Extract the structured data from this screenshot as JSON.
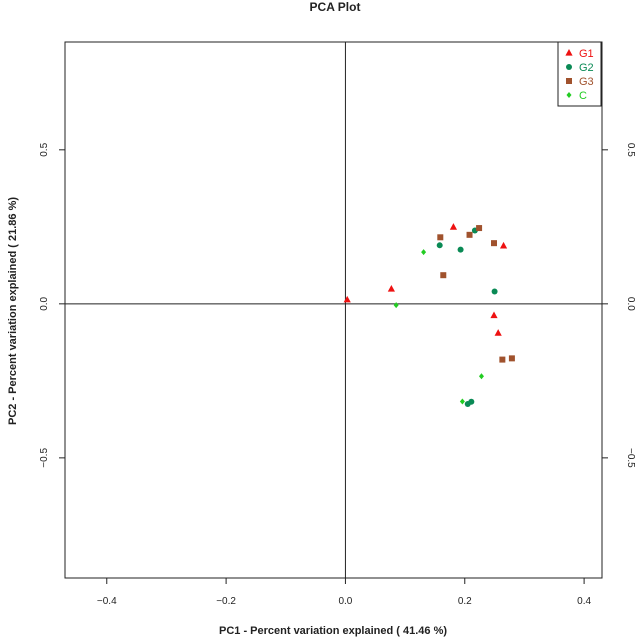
{
  "chart_data": {
    "type": "scatter",
    "title": "PCA Plot",
    "xlabel": "PC1 - Percent variation explained ( 41.46 %)",
    "ylabel": "PC2 - Percent variation explained ( 21.86 %)",
    "xlim": [
      -0.47,
      0.43
    ],
    "ylim": [
      -0.89,
      0.85
    ],
    "xticks": [
      -0.4,
      -0.2,
      0.0,
      0.2,
      0.4
    ],
    "xtick_labels": [
      "−0.4",
      "−0.2",
      "0.0",
      "0.2",
      "0.4"
    ],
    "yticks": [
      -0.5,
      0.0,
      0.5
    ],
    "ytick_labels": [
      "−0.5",
      "0.0",
      "0.5"
    ],
    "reference_lines": {
      "x": 0,
      "y": 0
    },
    "legend_position": "top-right",
    "grid": false,
    "series": [
      {
        "name": "G1",
        "marker": "triangle",
        "color": "#ee1111",
        "points": [
          [
            0.003,
            0.013
          ],
          [
            0.077,
            0.048
          ],
          [
            0.181,
            0.249
          ],
          [
            0.265,
            0.188
          ],
          [
            0.249,
            -0.038
          ],
          [
            0.256,
            -0.095
          ]
        ]
      },
      {
        "name": "G2",
        "marker": "circle",
        "color": "#0a8a55",
        "points": [
          [
            0.158,
            0.19
          ],
          [
            0.193,
            0.176
          ],
          [
            0.217,
            0.238
          ],
          [
            0.25,
            0.04
          ],
          [
            0.205,
            -0.325
          ],
          [
            0.211,
            -0.318
          ]
        ]
      },
      {
        "name": "G3",
        "marker": "square",
        "color": "#a0522d",
        "points": [
          [
            0.159,
            0.216
          ],
          [
            0.208,
            0.224
          ],
          [
            0.224,
            0.246
          ],
          [
            0.249,
            0.197
          ],
          [
            0.164,
            0.093
          ],
          [
            0.263,
            -0.181
          ],
          [
            0.279,
            -0.177
          ]
        ]
      },
      {
        "name": "C",
        "marker": "diamond",
        "color": "#22cc22",
        "points": [
          [
            0.131,
            0.168
          ],
          [
            0.085,
            -0.004
          ],
          [
            0.228,
            -0.235
          ],
          [
            0.196,
            -0.317
          ]
        ]
      }
    ]
  }
}
